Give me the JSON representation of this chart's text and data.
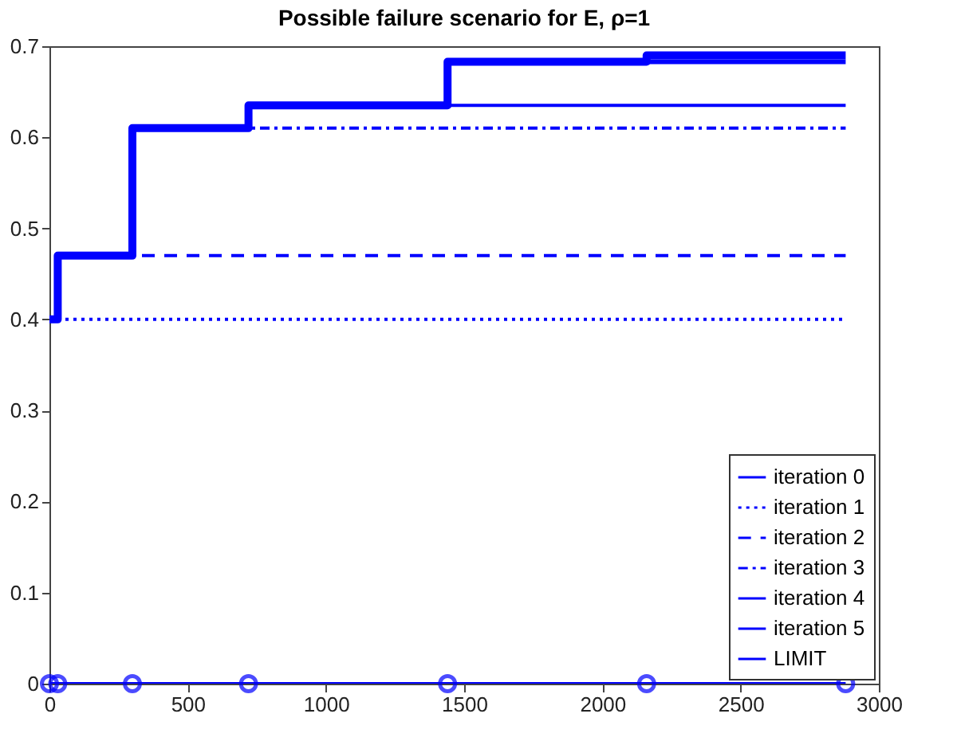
{
  "chart_data": {
    "type": "step",
    "title": "Possible failure scenario for  E,  ρ=1",
    "xlim": [
      0,
      3000
    ],
    "ylim": [
      0,
      0.7
    ],
    "xticks": [
      0,
      500,
      1000,
      1500,
      2000,
      2500,
      3000
    ],
    "yticks": [
      0,
      0.1,
      0.2,
      0.3,
      0.4,
      0.5,
      0.6,
      0.7
    ],
    "grid": false,
    "legend": "bottom right",
    "x": [
      0,
      30,
      300,
      720,
      1440,
      2160,
      2880
    ],
    "series": [
      {
        "name": "iteration 0",
        "color": "#0000ff",
        "line_style": "solid",
        "marker": "circle",
        "values": [
          0,
          0,
          0,
          0,
          0,
          0,
          0
        ]
      },
      {
        "name": "iteration 1",
        "color": "#0000ff",
        "line_style": "dotted",
        "values": [
          0.4,
          0.4,
          0.4,
          0.4,
          0.4,
          0.4,
          0.4
        ]
      },
      {
        "name": "iteration 2",
        "color": "#0000ff",
        "line_style": "dashed",
        "values": [
          0.4,
          0.47,
          0.47,
          0.47,
          0.47,
          0.47,
          0.47
        ]
      },
      {
        "name": "iteration 3",
        "color": "#0000ff",
        "line_style": "dashdot",
        "values": [
          0.4,
          0.47,
          0.61,
          0.61,
          0.61,
          0.61,
          0.61
        ]
      },
      {
        "name": "iteration 4",
        "color": "#0000ff",
        "line_style": "solid",
        "values": [
          0.4,
          0.47,
          0.61,
          0.635,
          0.635,
          0.635,
          0.635
        ]
      },
      {
        "name": "iteration 5",
        "color": "#0000ff",
        "line_style": "solid",
        "values": [
          0.4,
          0.47,
          0.61,
          0.635,
          0.683,
          0.683,
          0.683
        ]
      },
      {
        "name": "LIMIT",
        "color": "#0000ff",
        "line_style": "solid",
        "values": [
          0.4,
          0.47,
          0.61,
          0.635,
          0.683,
          0.69,
          0.69
        ]
      }
    ]
  }
}
